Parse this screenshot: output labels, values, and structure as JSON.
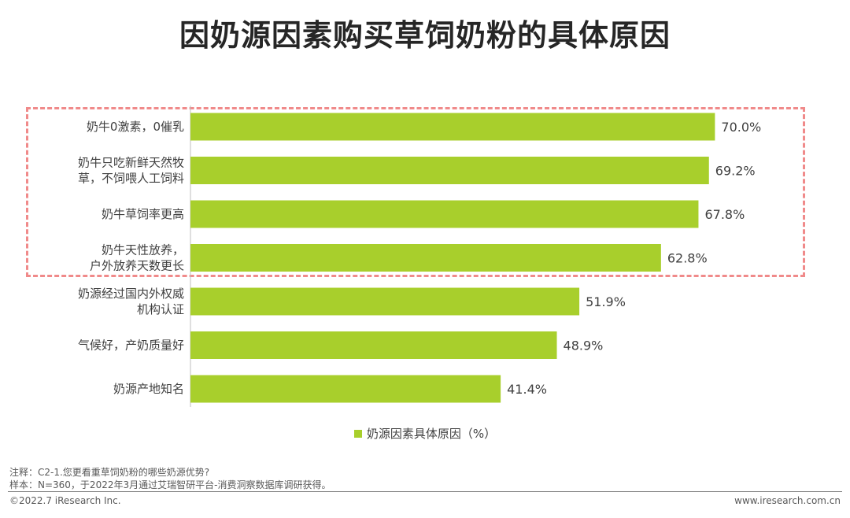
{
  "title": "因奶源因素购买草饲奶粉的具体原因",
  "chart_data": {
    "type": "bar",
    "orientation": "horizontal",
    "categories": [
      [
        "奶牛0激素，0催乳"
      ],
      [
        "奶牛只吃新鲜天然牧",
        "草，不饲喂人工饲料"
      ],
      [
        "奶牛草饲率更高"
      ],
      [
        "奶牛天性放养，",
        "户外放养天数更长"
      ],
      [
        "奶源经过国内外权威",
        "机构认证"
      ],
      [
        "气候好，产奶质量好"
      ],
      [
        "奶源产地知名"
      ]
    ],
    "values": [
      70.0,
      69.2,
      67.8,
      62.8,
      51.9,
      48.9,
      41.4
    ],
    "value_labels": [
      "70.0%",
      "69.2%",
      "67.8%",
      "62.8%",
      "51.9%",
      "48.9%",
      "41.4%"
    ],
    "series_name": "奶源因素具体原因（%）",
    "xlim": [
      0,
      100
    ],
    "color": "#a8cf2c",
    "highlight_dashed_box_rows": 4
  },
  "notes": {
    "note1": "注释：C2-1.您更看重草饲奶粉的哪些奶源优势?",
    "note2": "样本：N=360，于2022年3月通过艾瑞智研平台-消费洞察数据库调研获得。"
  },
  "footer": {
    "left": "©2022.7 iResearch Inc.",
    "right": "www.iresearch.com.cn"
  }
}
